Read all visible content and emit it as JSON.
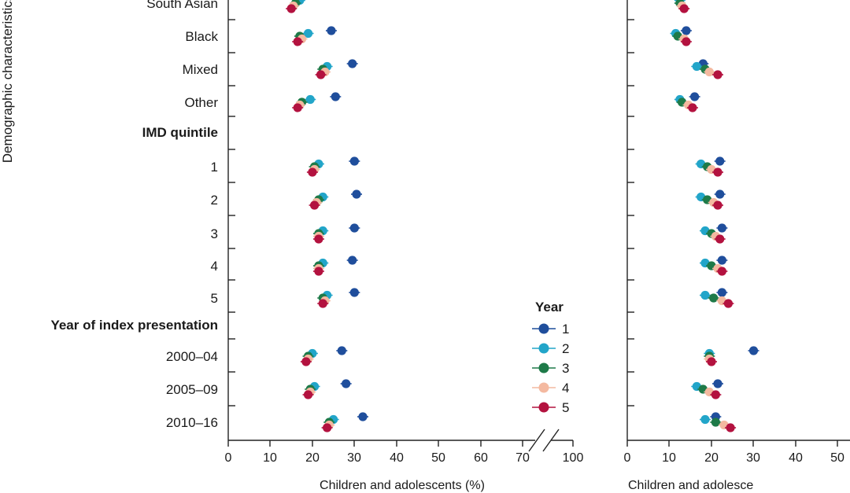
{
  "y_axis_title": "Demographic characteristics",
  "legend": {
    "title": "Year",
    "items": [
      {
        "label": "1",
        "color": "#1f4e9c"
      },
      {
        "label": "2",
        "color": "#22a5c9"
      },
      {
        "label": "3",
        "color": "#1e7a48"
      },
      {
        "label": "4",
        "color": "#f4b9a0"
      },
      {
        "label": "5",
        "color": "#b3123f"
      }
    ]
  },
  "chart_data": [
    {
      "type": "scatter",
      "panel": "left",
      "xlabel": "Children and adolescents (%)",
      "ticks": [
        "0",
        "10",
        "20",
        "30",
        "40",
        "50",
        "60",
        "70",
        "100"
      ],
      "xlim": [
        0,
        100
      ],
      "axis_break": [
        72,
        100
      ],
      "rows": [
        {
          "label": "South Asian",
          "kind": "row",
          "values": [
            null,
            17,
            16,
            15.5,
            15
          ]
        },
        {
          "label": "Black",
          "kind": "row",
          "values": [
            24.5,
            19,
            17,
            17.5,
            16.5
          ]
        },
        {
          "label": "Mixed",
          "kind": "row",
          "values": [
            29.5,
            23.5,
            22.5,
            23,
            22
          ]
        },
        {
          "label": "Other",
          "kind": "row",
          "values": [
            25.5,
            19.5,
            17.5,
            17,
            16.5
          ]
        },
        {
          "label": "IMD quintile",
          "kind": "header"
        },
        {
          "label": "1",
          "kind": "row",
          "values": [
            30,
            21.5,
            20.5,
            20.5,
            20
          ]
        },
        {
          "label": "2",
          "kind": "row",
          "values": [
            30.5,
            22.5,
            21.5,
            21,
            20.5
          ]
        },
        {
          "label": "3",
          "kind": "row",
          "values": [
            30,
            22.5,
            21.5,
            21.5,
            21.5
          ]
        },
        {
          "label": "4",
          "kind": "row",
          "values": [
            29.5,
            22.5,
            21.5,
            21.5,
            21.5
          ]
        },
        {
          "label": "5",
          "kind": "row",
          "values": [
            30,
            23.5,
            22.5,
            23,
            22.5
          ]
        },
        {
          "label": "Year of index presentation",
          "kind": "header"
        },
        {
          "label": "2000–04",
          "kind": "row",
          "values": [
            27,
            20,
            19,
            19,
            18.5
          ]
        },
        {
          "label": "2005–09",
          "kind": "row",
          "values": [
            28,
            20.5,
            19.5,
            19.5,
            19
          ]
        },
        {
          "label": "2010–16",
          "kind": "row",
          "values": [
            32,
            25,
            24,
            24,
            23.5
          ]
        }
      ]
    },
    {
      "type": "scatter",
      "panel": "right",
      "xlabel": "Children and adolesce",
      "ticks": [
        "0",
        "10",
        "20",
        "30",
        "40",
        "50"
      ],
      "xlim": [
        0,
        55
      ],
      "rows": [
        {
          "label": "South Asian",
          "kind": "row",
          "values": [
            null,
            12.5,
            12.5,
            13,
            13.5
          ]
        },
        {
          "label": "Black",
          "kind": "row",
          "values": [
            14,
            11.5,
            12,
            13.5,
            14
          ]
        },
        {
          "label": "Mixed",
          "kind": "row",
          "values": [
            18,
            16.5,
            18.5,
            19.5,
            21.5
          ]
        },
        {
          "label": "Other",
          "kind": "row",
          "values": [
            16,
            12.5,
            13,
            14.5,
            15.5
          ]
        },
        {
          "label": "IMD quintile",
          "kind": "header"
        },
        {
          "label": "1",
          "kind": "row",
          "values": [
            22,
            17.5,
            19,
            20,
            21.5
          ]
        },
        {
          "label": "2",
          "kind": "row",
          "values": [
            22,
            17.5,
            19,
            20.5,
            21.5
          ]
        },
        {
          "label": "3",
          "kind": "row",
          "values": [
            22.5,
            18.5,
            20,
            21,
            22
          ]
        },
        {
          "label": "4",
          "kind": "row",
          "values": [
            22.5,
            18.5,
            20,
            21.5,
            22.5
          ]
        },
        {
          "label": "5",
          "kind": "row",
          "values": [
            22.5,
            18.5,
            20.5,
            22.5,
            24
          ]
        },
        {
          "label": "Year of index presentation",
          "kind": "header"
        },
        {
          "label": "2000–04",
          "kind": "row",
          "values": [
            30,
            19.5,
            19.5,
            19.5,
            20
          ]
        },
        {
          "label": "2005–09",
          "kind": "row",
          "values": [
            21.5,
            16.5,
            18,
            19.5,
            21
          ]
        },
        {
          "label": "2010–16",
          "kind": "row",
          "values": [
            21,
            18.5,
            21,
            23,
            24.5
          ]
        }
      ]
    }
  ]
}
